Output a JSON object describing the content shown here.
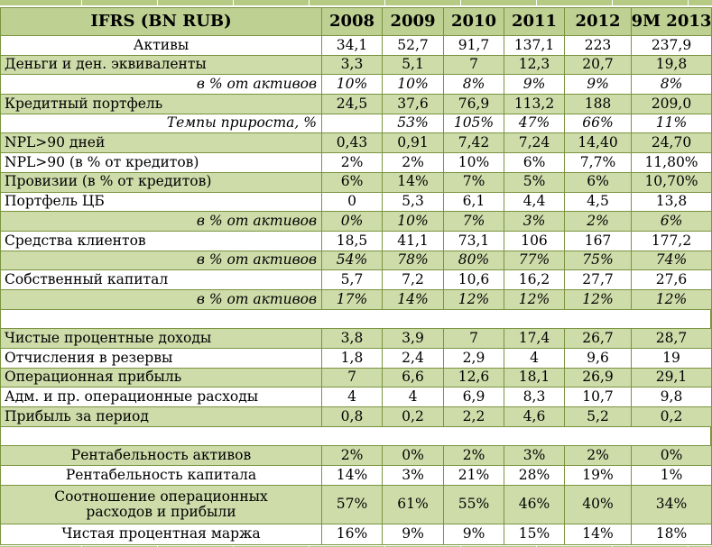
{
  "colors": {
    "header_bg": "#bed092",
    "row_green": "#cedcaa",
    "strip_green": "#b5cb83",
    "border": "#7a9440",
    "text": "#000000"
  },
  "header": {
    "label": "IFRS (BN RUB)",
    "years": [
      "2008",
      "2009",
      "2010",
      "2011",
      "2012",
      "9M 2013"
    ]
  },
  "rows": [
    {
      "label": "Активы",
      "align": "center",
      "italic": false,
      "bg": "white",
      "values": [
        "34,1",
        "52,7",
        "91,7",
        "137,1",
        "223",
        "237,9"
      ]
    },
    {
      "label": "Деньги и ден. эквиваленты",
      "align": "left",
      "italic": false,
      "bg": "green",
      "values": [
        "3,3",
        "5,1",
        "7",
        "12,3",
        "20,7",
        "19,8"
      ]
    },
    {
      "label": "в % от активов",
      "align": "right",
      "italic": true,
      "bg": "white",
      "values": [
        "10%",
        "10%",
        "8%",
        "9%",
        "9%",
        "8%"
      ]
    },
    {
      "label": "Кредитный портфель",
      "align": "left",
      "italic": false,
      "bg": "green",
      "values": [
        "24,5",
        "37,6",
        "76,9",
        "113,2",
        "188",
        "209,0"
      ]
    },
    {
      "label": "Темпы прироста, %",
      "align": "right",
      "italic": true,
      "bg": "white",
      "values": [
        "",
        "53%",
        "105%",
        "47%",
        "66%",
        "11%"
      ]
    },
    {
      "label": "NPL>90 дней",
      "align": "left",
      "italic": false,
      "bg": "green",
      "values": [
        "0,43",
        "0,91",
        "7,42",
        "7,24",
        "14,40",
        "24,70"
      ]
    },
    {
      "label": "NPL>90 (в % от кредитов)",
      "align": "left",
      "italic": false,
      "bg": "white",
      "values": [
        "2%",
        "2%",
        "10%",
        "6%",
        "7,7%",
        "11,80%"
      ]
    },
    {
      "label": "Провизии (в % от кредитов)",
      "align": "left",
      "italic": false,
      "bg": "green",
      "values": [
        "6%",
        "14%",
        "7%",
        "5%",
        "6%",
        "10,70%"
      ]
    },
    {
      "label": "Портфель ЦБ",
      "align": "left",
      "italic": false,
      "bg": "white",
      "values": [
        "0",
        "5,3",
        "6,1",
        "4,4",
        "4,5",
        "13,8"
      ]
    },
    {
      "label": "в % от активов",
      "align": "right",
      "italic": true,
      "bg": "green",
      "values": [
        "0%",
        "10%",
        "7%",
        "3%",
        "2%",
        "6%"
      ]
    },
    {
      "label": "Средства клиентов",
      "align": "left",
      "italic": false,
      "bg": "white",
      "values": [
        "18,5",
        "41,1",
        "73,1",
        "106",
        "167",
        "177,2"
      ]
    },
    {
      "label": "в % от активов",
      "align": "right",
      "italic": true,
      "bg": "green",
      "values": [
        "54%",
        "78%",
        "80%",
        "77%",
        "75%",
        "74%"
      ]
    },
    {
      "label": "Собственный капитал",
      "align": "left",
      "italic": false,
      "bg": "white",
      "values": [
        "5,7",
        "7,2",
        "10,6",
        "16,2",
        "27,7",
        "27,6"
      ]
    },
    {
      "label": "в % от активов",
      "align": "right",
      "italic": true,
      "bg": "green",
      "values": [
        "17%",
        "14%",
        "12%",
        "12%",
        "12%",
        "12%"
      ]
    },
    {
      "spacer": true
    },
    {
      "label": "Чистые процентные доходы",
      "align": "left",
      "italic": false,
      "bg": "green",
      "values": [
        "3,8",
        "3,9",
        "7",
        "17,4",
        "26,7",
        "28,7"
      ]
    },
    {
      "label": "Отчисления в резервы",
      "align": "left",
      "italic": false,
      "bg": "white",
      "values": [
        "1,8",
        "2,4",
        "2,9",
        "4",
        "9,6",
        "19"
      ]
    },
    {
      "label": "Операционная прибыль",
      "align": "left",
      "italic": false,
      "bg": "green",
      "values": [
        "7",
        "6,6",
        "12,6",
        "18,1",
        "26,9",
        "29,1"
      ]
    },
    {
      "label": "Адм. и пр. операционные расходы",
      "align": "left",
      "italic": false,
      "bg": "white",
      "values": [
        "4",
        "4",
        "6,9",
        "8,3",
        "10,7",
        "9,8"
      ]
    },
    {
      "label": "Прибыль за период",
      "align": "left",
      "italic": false,
      "bg": "green",
      "values": [
        "0,8",
        "0,2",
        "2,2",
        "4,6",
        "5,2",
        "0,2"
      ]
    },
    {
      "spacer": true
    },
    {
      "label": "Рентабельность активов",
      "align": "center",
      "italic": false,
      "bg": "green",
      "values": [
        "2%",
        "0%",
        "2%",
        "3%",
        "2%",
        "0%"
      ]
    },
    {
      "label": "Рентабельность капитала",
      "align": "center",
      "italic": false,
      "bg": "white",
      "values": [
        "14%",
        "3%",
        "21%",
        "28%",
        "19%",
        "1%"
      ]
    },
    {
      "label": "Соотношение операционных расходов и прибыли",
      "align": "center",
      "italic": false,
      "bg": "green",
      "tall": true,
      "values": [
        "57%",
        "61%",
        "55%",
        "46%",
        "40%",
        "34%"
      ]
    },
    {
      "label": "Чистая процентная маржа",
      "align": "center",
      "italic": false,
      "bg": "white",
      "values": [
        "16%",
        "9%",
        "9%",
        "15%",
        "14%",
        "18%"
      ]
    }
  ]
}
